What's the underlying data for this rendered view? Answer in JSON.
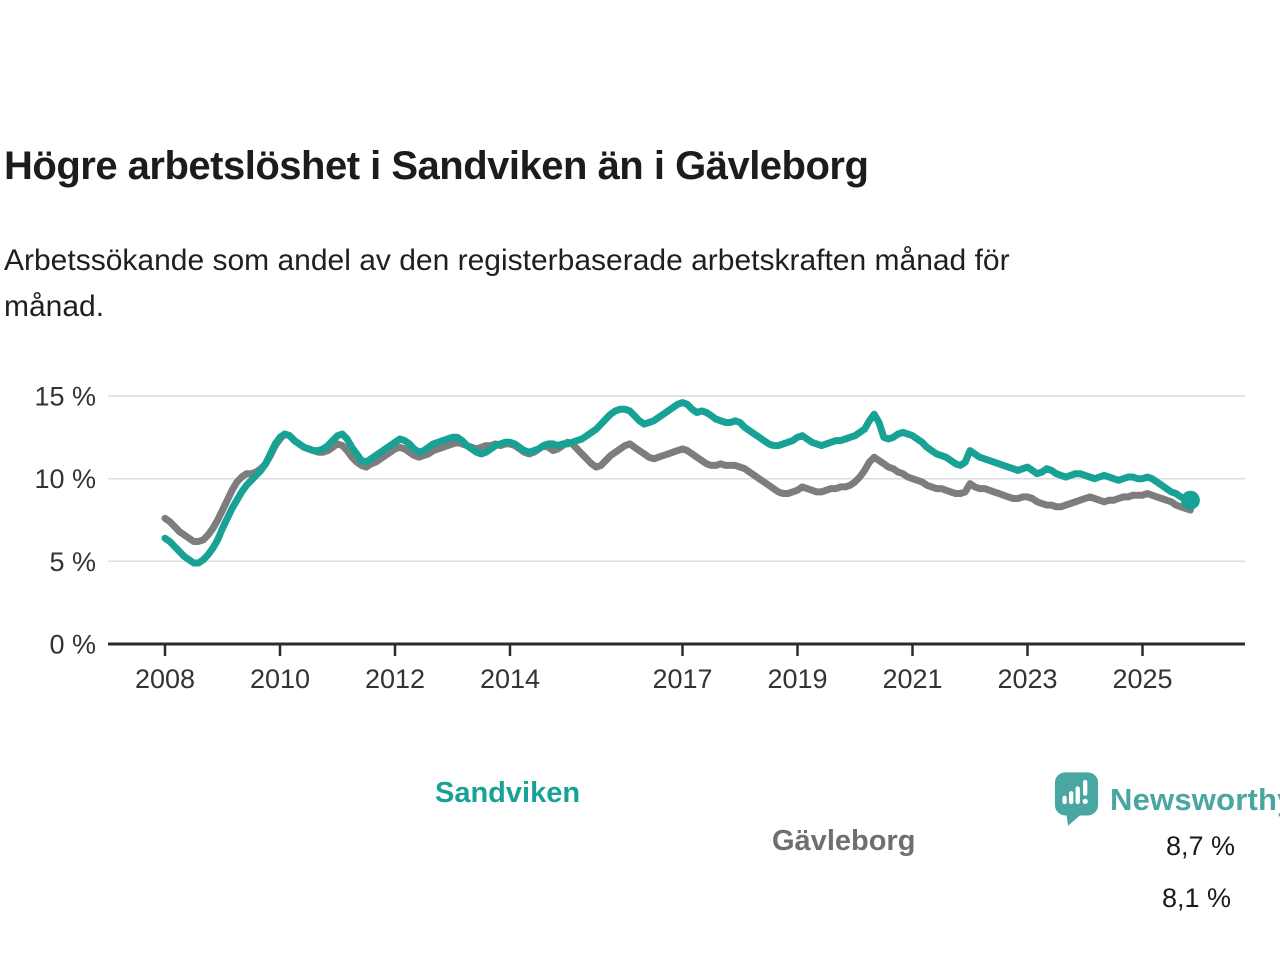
{
  "title": "Högre arbetslöshet i Sandviken än i Gävleborg",
  "subtitle": "Arbetssökande som andel av den registerbaserade arbetskraften månad för\nmånad.",
  "branding": {
    "logo_text": "Newsworthy",
    "logo_color": "#4aa6a2"
  },
  "chart_data": {
    "type": "line",
    "unit": "%",
    "x_start": {
      "year": 2008,
      "month": 1
    },
    "months_per_point": 1,
    "ylim": [
      0,
      15.5
    ],
    "grid": "horizontal-only",
    "legend_position": "inline-labels",
    "y_axis": {
      "tick_values": [
        15,
        10,
        5,
        0
      ],
      "tick_labels": [
        "15 %",
        "10 %",
        "5 %",
        "0 %"
      ]
    },
    "x_axis": {
      "start_year": 2008,
      "tick_years": [
        2008,
        2010,
        2012,
        2014,
        2017,
        2019,
        2021,
        2023,
        2025
      ]
    },
    "style": {
      "grid_color": "#dcdcdc",
      "axis_color": "#2b2b2b",
      "tick_text_color": "#333333",
      "line_width": 7
    },
    "series": [
      {
        "name": "Sandviken",
        "color": "#17a295",
        "end_label": "8,7 %",
        "end_marker": true,
        "values": [
          6.4,
          6.2,
          5.9,
          5.6,
          5.3,
          5.1,
          4.9,
          4.9,
          5.1,
          5.4,
          5.8,
          6.3,
          7.0,
          7.6,
          8.2,
          8.7,
          9.2,
          9.6,
          9.9,
          10.2,
          10.5,
          10.9,
          11.5,
          12.1,
          12.5,
          12.7,
          12.6,
          12.3,
          12.1,
          11.9,
          11.8,
          11.7,
          11.7,
          11.8,
          12.0,
          12.3,
          12.6,
          12.7,
          12.4,
          11.9,
          11.5,
          11.1,
          11.0,
          11.2,
          11.4,
          11.6,
          11.8,
          12.0,
          12.2,
          12.4,
          12.3,
          12.1,
          11.8,
          11.6,
          11.7,
          11.9,
          12.1,
          12.2,
          12.3,
          12.4,
          12.5,
          12.5,
          12.3,
          12.0,
          11.8,
          11.6,
          11.5,
          11.6,
          11.8,
          12.0,
          12.1,
          12.2,
          12.2,
          12.1,
          11.9,
          11.7,
          11.6,
          11.7,
          11.8,
          12.0,
          12.1,
          12.1,
          12.0,
          12.1,
          12.1,
          12.2,
          12.3,
          12.4,
          12.6,
          12.8,
          13.0,
          13.3,
          13.6,
          13.9,
          14.1,
          14.2,
          14.2,
          14.1,
          13.8,
          13.5,
          13.3,
          13.4,
          13.5,
          13.7,
          13.9,
          14.1,
          14.3,
          14.5,
          14.6,
          14.5,
          14.2,
          14.0,
          14.1,
          14.0,
          13.8,
          13.6,
          13.5,
          13.4,
          13.4,
          13.5,
          13.4,
          13.1,
          12.9,
          12.7,
          12.5,
          12.3,
          12.1,
          12.0,
          12.0,
          12.1,
          12.2,
          12.3,
          12.5,
          12.6,
          12.4,
          12.2,
          12.1,
          12.0,
          12.1,
          12.2,
          12.3,
          12.3,
          12.4,
          12.5,
          12.6,
          12.8,
          13.0,
          13.5,
          13.9,
          13.4,
          12.5,
          12.4,
          12.5,
          12.7,
          12.8,
          12.7,
          12.6,
          12.4,
          12.2,
          11.9,
          11.7,
          11.5,
          11.4,
          11.3,
          11.1,
          10.9,
          10.8,
          11.0,
          11.7,
          11.5,
          11.3,
          11.2,
          11.1,
          11.0,
          10.9,
          10.8,
          10.7,
          10.6,
          10.5,
          10.6,
          10.7,
          10.5,
          10.3,
          10.4,
          10.6,
          10.5,
          10.3,
          10.2,
          10.1,
          10.2,
          10.3,
          10.3,
          10.2,
          10.1,
          10.0,
          10.1,
          10.2,
          10.1,
          10.0,
          9.9,
          10.0,
          10.1,
          10.1,
          10.0,
          10.0,
          10.1,
          10.0,
          9.8,
          9.6,
          9.4,
          9.2,
          9.1,
          8.9,
          8.8,
          8.7
        ]
      },
      {
        "name": "Gävleborg",
        "color": "#7d7d7d",
        "label_color": "#6f6f6f",
        "end_label": "8,1 %",
        "end_marker": false,
        "values": [
          7.6,
          7.4,
          7.1,
          6.8,
          6.6,
          6.4,
          6.2,
          6.2,
          6.3,
          6.6,
          7.0,
          7.5,
          8.1,
          8.7,
          9.3,
          9.8,
          10.1,
          10.3,
          10.3,
          10.4,
          10.6,
          10.9,
          11.4,
          12.0,
          12.4,
          12.7,
          12.6,
          12.3,
          12.1,
          11.9,
          11.8,
          11.7,
          11.6,
          11.6,
          11.7,
          11.9,
          12.1,
          12.0,
          11.7,
          11.3,
          11.0,
          10.8,
          10.7,
          10.9,
          11.0,
          11.2,
          11.4,
          11.6,
          11.8,
          11.9,
          11.8,
          11.6,
          11.4,
          11.3,
          11.4,
          11.5,
          11.7,
          11.8,
          11.9,
          12.0,
          12.1,
          12.2,
          12.1,
          12.0,
          11.9,
          11.8,
          11.9,
          12.0,
          12.0,
          12.1,
          12.0,
          12.1,
          12.1,
          12.0,
          11.8,
          11.6,
          11.5,
          11.6,
          11.8,
          12.0,
          11.9,
          11.7,
          11.8,
          12.0,
          12.2,
          12.1,
          11.8,
          11.5,
          11.2,
          10.9,
          10.7,
          10.8,
          11.1,
          11.4,
          11.6,
          11.8,
          12.0,
          12.1,
          11.9,
          11.7,
          11.5,
          11.3,
          11.2,
          11.3,
          11.4,
          11.5,
          11.6,
          11.7,
          11.8,
          11.7,
          11.5,
          11.3,
          11.1,
          10.9,
          10.8,
          10.8,
          10.9,
          10.8,
          10.8,
          10.8,
          10.7,
          10.6,
          10.4,
          10.2,
          10.0,
          9.8,
          9.6,
          9.4,
          9.2,
          9.1,
          9.1,
          9.2,
          9.3,
          9.5,
          9.4,
          9.3,
          9.2,
          9.2,
          9.3,
          9.4,
          9.4,
          9.5,
          9.5,
          9.6,
          9.8,
          10.1,
          10.5,
          11.0,
          11.3,
          11.1,
          10.9,
          10.7,
          10.6,
          10.4,
          10.3,
          10.1,
          10.0,
          9.9,
          9.8,
          9.6,
          9.5,
          9.4,
          9.4,
          9.3,
          9.2,
          9.1,
          9.1,
          9.2,
          9.7,
          9.5,
          9.4,
          9.4,
          9.3,
          9.2,
          9.1,
          9.0,
          8.9,
          8.8,
          8.8,
          8.9,
          8.9,
          8.8,
          8.6,
          8.5,
          8.4,
          8.4,
          8.3,
          8.3,
          8.4,
          8.5,
          8.6,
          8.7,
          8.8,
          8.9,
          8.8,
          8.7,
          8.6,
          8.7,
          8.7,
          8.8,
          8.9,
          8.9,
          9.0,
          9.0,
          9.0,
          9.1,
          9.0,
          8.9,
          8.8,
          8.7,
          8.6,
          8.4,
          8.3,
          8.2,
          8.1
        ]
      }
    ]
  }
}
